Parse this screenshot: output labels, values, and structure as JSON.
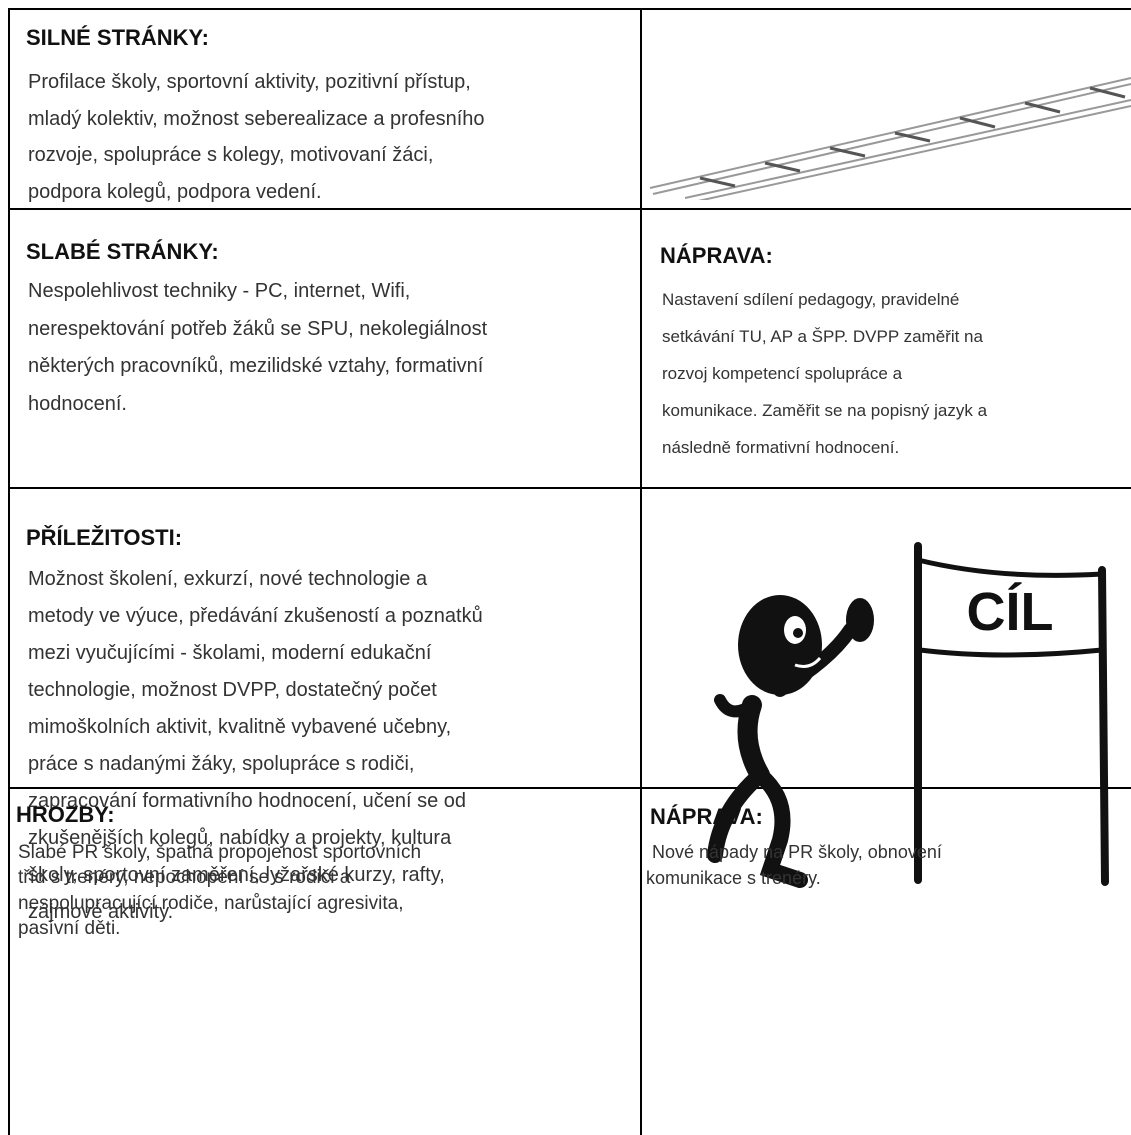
{
  "strengths": {
    "heading": "SILNÉ STRÁNKY:",
    "lines": [
      "Profilace  školy, sportovní aktivity, pozitivní přístup,",
      "mladý kolektiv, možnost seberealizace a profesního",
      "rozvoje, spolupráce s kolegy, motivovaní žáci,",
      "podpora kolegů, podpora vedení."
    ]
  },
  "weaknesses": {
    "heading": "SLABÉ STRÁNKY:",
    "lines": [
      "Nespolehlivost techniky - PC, internet, Wifi,",
      "nerespektování  potřeb žáků se SPU, nekolegiálnost",
      "některých pracovníků, mezilidské vztahy, formativní",
      "hodnocení."
    ]
  },
  "weaknesses_remedy": {
    "heading": "NÁPRAVA:",
    "lines": [
      "Nastavení sdílení pedagogy, pravidelné",
      "setkávání TU, AP a ŠPP. DVPP zaměřit na",
      "rozvoj kompetencí spolupráce a",
      "komunikace. Zaměřit se na popisný jazyk a",
      "následně formativní hodnocení."
    ]
  },
  "opportunities": {
    "heading": "PŘÍLEŽITOSTI:",
    "lines": [
      "Možnost školení, exkurzí, nové technologie a",
      "metody ve výuce, předávání zkušeností a poznatků",
      "mezi vyučujícími - školami, moderní edukační",
      "technologie, možnost DVPP, dostatečný počet",
      "mimoškolních aktivit, kvalitně vybavené učebny,",
      "práce s nadanými žáky, spolupráce s rodiči,",
      "zapracování formativního hodnocení, učení se od",
      "zkušenějších kolegů, nabídky a projekty, kultura",
      "školy, sportovní zaměření, lyžařské kurzy, rafty,",
      "zájmové aktivity."
    ]
  },
  "threats": {
    "heading": "HROZBY:",
    "lines": [
      "Slabé PR školy,  špatná  propojenost  sportovních",
      "tříd s trenéry, nepochopení se s rodiči a",
      "nespolupracující rodiče, narůstající agresivita,",
      "pasívní děti."
    ]
  },
  "threats_remedy": {
    "heading": "NÁPRAVA:",
    "lines": [
      "Nové nápady na PR školy, obnovení",
      "komunikace s trenéry."
    ]
  },
  "goal_sign": "CÍL"
}
